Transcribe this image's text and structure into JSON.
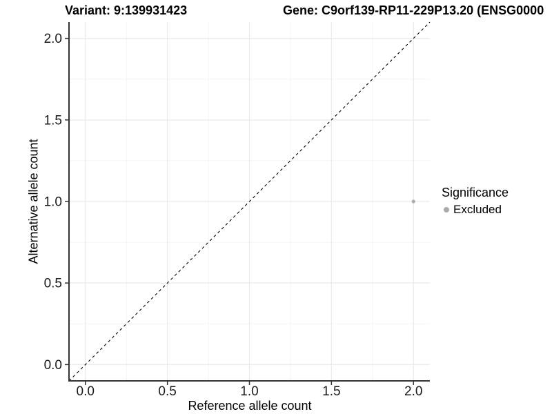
{
  "titles": {
    "variant": "Variant: 9:139931423",
    "gene": "Gene: C9orf139-RP11-229P13.20 (ENSG0000"
  },
  "chart_data": {
    "type": "scatter",
    "title_left": "Variant: 9:139931423",
    "title_right": "Gene: C9orf139-RP11-229P13.20 (ENSG0000",
    "xlabel": "Reference allele count",
    "ylabel": "Alternative allele count",
    "xlim": [
      -0.1,
      2.1
    ],
    "ylim": [
      -0.1,
      2.1
    ],
    "x_ticks": [
      0.0,
      0.5,
      1.0,
      1.5,
      2.0
    ],
    "y_ticks": [
      0.0,
      0.5,
      1.0,
      1.5,
      2.0
    ],
    "x_tick_labels": [
      "0.0",
      "0.5",
      "1.0",
      "1.5",
      "2.0"
    ],
    "y_tick_labels": [
      "0.0",
      "0.5",
      "1.0",
      "1.5",
      "2.0"
    ],
    "grid": {
      "major": true,
      "minor": true
    },
    "reference_line": {
      "type": "identity",
      "slope": 1,
      "intercept": 0,
      "style": "dashed"
    },
    "series": [
      {
        "name": "Excluded",
        "color": "#ababab",
        "points": [
          [
            2.0,
            1.0
          ]
        ],
        "point_radius": 2.6
      }
    ],
    "legend": {
      "position": "right",
      "title": "Significance",
      "entries": [
        {
          "label": "Excluded",
          "color": "#ababab"
        }
      ]
    }
  },
  "colors": {
    "background": "#ffffff",
    "grid_major": "#ebebeb",
    "grid_minor": "#f4f4f4",
    "axis_line": "#333333",
    "tick_mark": "#333333",
    "tick_label": "#1a1a1a",
    "dashed_line": "#000000",
    "point": "#ababab"
  }
}
